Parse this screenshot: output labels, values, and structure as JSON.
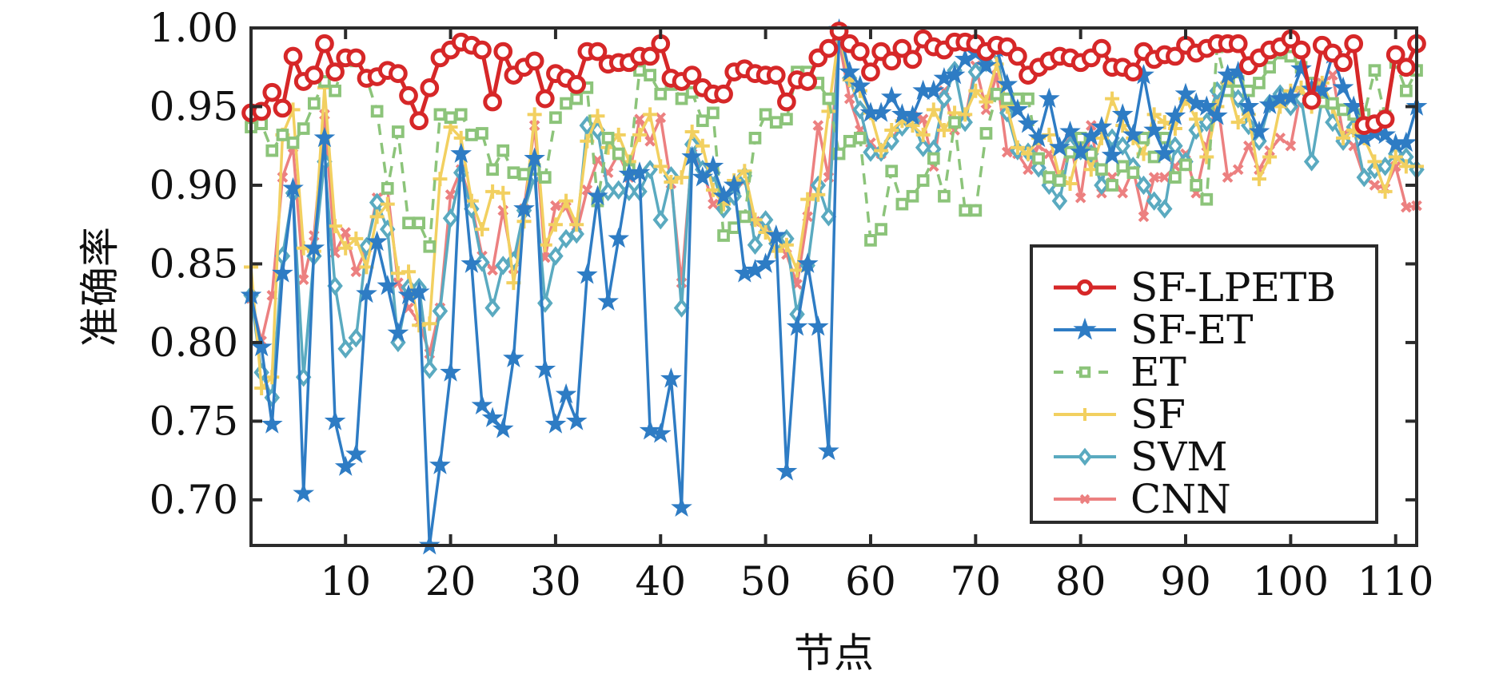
{
  "chart_data": {
    "type": "line",
    "title": "",
    "xlabel": "节点",
    "ylabel": "准确率",
    "xlim": [
      1,
      112
    ],
    "ylim": [
      0.671,
      1.0
    ],
    "xticks": [
      10,
      20,
      30,
      40,
      50,
      60,
      70,
      80,
      90,
      100,
      110
    ],
    "yticks": [
      0.7,
      0.75,
      0.8,
      0.85,
      0.9,
      0.95,
      1.0
    ],
    "ytick_labels": [
      "0.70",
      "0.75",
      "0.80",
      "0.85",
      "0.90",
      "0.95",
      "1.00"
    ],
    "xtick_labels": [
      "10",
      "20",
      "30",
      "40",
      "50",
      "60",
      "70",
      "80",
      "90",
      "100",
      "110"
    ],
    "grid": false,
    "legend_position": "lower-right",
    "series": [
      {
        "name": "SF-LPETB",
        "color": "#d62728",
        "marker": "circle",
        "dash": "solid",
        "values": [
          0.946,
          0.947,
          0.959,
          0.949,
          0.982,
          0.966,
          0.97,
          0.99,
          0.972,
          0.981,
          0.981,
          0.968,
          0.969,
          0.973,
          0.971,
          0.957,
          0.941,
          0.962,
          0.981,
          0.986,
          0.991,
          0.989,
          0.986,
          0.953,
          0.985,
          0.97,
          0.975,
          0.979,
          0.955,
          0.971,
          0.968,
          0.964,
          0.985,
          0.985,
          0.977,
          0.978,
          0.978,
          0.982,
          0.982,
          0.99,
          0.968,
          0.966,
          0.97,
          0.962,
          0.958,
          0.958,
          0.972,
          0.974,
          0.971,
          0.97,
          0.97,
          0.953,
          0.967,
          0.966,
          0.981,
          0.987,
          0.998,
          0.99,
          0.985,
          0.972,
          0.985,
          0.979,
          0.987,
          0.98,
          0.993,
          0.988,
          0.986,
          0.991,
          0.991,
          0.99,
          0.985,
          0.989,
          0.988,
          0.982,
          0.97,
          0.975,
          0.979,
          0.982,
          0.981,
          0.978,
          0.981,
          0.987,
          0.975,
          0.975,
          0.972,
          0.985,
          0.98,
          0.983,
          0.982,
          0.989,
          0.984,
          0.987,
          0.99,
          0.99,
          0.99,
          0.976,
          0.981,
          0.986,
          0.988,
          0.993,
          0.986,
          0.954,
          0.989,
          0.984,
          0.978,
          0.99,
          0.938,
          0.939,
          0.942,
          0.983,
          0.975,
          0.99
        ]
      },
      {
        "name": "SF-ET",
        "color": "#2e7cc4",
        "marker": "star",
        "dash": "solid",
        "values": [
          0.83,
          0.797,
          0.748,
          0.844,
          0.898,
          0.704,
          0.86,
          0.93,
          0.75,
          0.721,
          0.729,
          0.831,
          0.864,
          0.836,
          0.806,
          0.83,
          0.832,
          0.671,
          0.722,
          0.781,
          0.92,
          0.85,
          0.76,
          0.752,
          0.745,
          0.79,
          0.885,
          0.917,
          0.783,
          0.748,
          0.767,
          0.75,
          0.843,
          0.893,
          0.826,
          0.866,
          0.907,
          0.908,
          0.744,
          0.742,
          0.777,
          0.695,
          0.918,
          0.905,
          0.912,
          0.893,
          0.9,
          0.844,
          0.846,
          0.85,
          0.868,
          0.718,
          0.81,
          0.85,
          0.81,
          0.731,
          0.999,
          0.972,
          0.963,
          0.946,
          0.946,
          0.956,
          0.945,
          0.944,
          0.96,
          0.96,
          0.968,
          0.97,
          0.98,
          0.984,
          0.976,
          0.987,
          0.964,
          0.948,
          0.939,
          0.93,
          0.955,
          0.924,
          0.934,
          0.921,
          0.931,
          0.937,
          0.919,
          0.945,
          0.932,
          0.97,
          0.935,
          0.92,
          0.944,
          0.958,
          0.952,
          0.95,
          0.944,
          0.97,
          0.972,
          0.95,
          0.934,
          0.951,
          0.955,
          0.956,
          0.974,
          0.961,
          0.96,
          0.983,
          0.962,
          0.95,
          0.93,
          0.933,
          0.932,
          0.926,
          0.927,
          0.95
        ]
      },
      {
        "name": "ET",
        "color": "#8cc47a",
        "marker": "square",
        "dash": "dashed",
        "values": [
          0.937,
          0.939,
          0.922,
          0.932,
          0.927,
          0.936,
          0.952,
          0.966,
          0.96,
          0.981,
          0.979,
          0.968,
          0.947,
          0.898,
          0.934,
          0.876,
          0.876,
          0.861,
          0.945,
          0.943,
          0.945,
          0.932,
          0.933,
          0.91,
          0.922,
          0.908,
          0.907,
          0.91,
          0.905,
          0.943,
          0.952,
          0.955,
          0.962,
          0.89,
          0.93,
          0.92,
          0.91,
          0.973,
          0.97,
          0.958,
          0.964,
          0.955,
          0.959,
          0.941,
          0.946,
          0.868,
          0.873,
          0.88,
          0.93,
          0.945,
          0.94,
          0.942,
          0.972,
          0.972,
          0.965,
          0.955,
          0.92,
          0.928,
          0.93,
          0.865,
          0.872,
          0.909,
          0.888,
          0.893,
          0.903,
          0.917,
          0.893,
          0.94,
          0.884,
          0.884,
          0.933,
          0.958,
          0.955,
          0.955,
          0.955,
          0.917,
          0.905,
          0.903,
          0.921,
          0.93,
          0.92,
          0.91,
          0.9,
          0.912,
          0.908,
          0.93,
          0.918,
          0.93,
          0.905,
          0.913,
          0.9,
          0.891,
          0.988,
          0.96,
          0.966,
          0.96,
          0.965,
          0.975,
          0.984,
          0.982,
          0.975,
          0.965,
          0.953,
          0.952,
          0.948,
          0.945,
          0.945,
          0.973,
          0.944,
          0.978,
          0.96,
          0.973
        ]
      },
      {
        "name": "SF",
        "color": "#f2d060",
        "marker": "plus",
        "dash": "solid",
        "values": [
          0.848,
          0.771,
          0.778,
          0.932,
          0.948,
          0.86,
          0.858,
          0.962,
          0.874,
          0.86,
          0.866,
          0.848,
          0.88,
          0.888,
          0.844,
          0.845,
          0.811,
          0.812,
          0.904,
          0.937,
          0.93,
          0.89,
          0.872,
          0.896,
          0.895,
          0.838,
          0.877,
          0.945,
          0.862,
          0.875,
          0.89,
          0.875,
          0.928,
          0.944,
          0.924,
          0.932,
          0.915,
          0.932,
          0.945,
          0.912,
          0.902,
          0.905,
          0.934,
          0.925,
          0.897,
          0.888,
          0.903,
          0.909,
          0.878,
          0.87,
          0.858,
          0.862,
          0.846,
          0.891,
          0.894,
          0.947,
          0.997,
          0.967,
          0.96,
          0.946,
          0.922,
          0.935,
          0.941,
          0.938,
          0.932,
          0.948,
          0.935,
          0.946,
          0.945,
          0.96,
          0.953,
          0.977,
          0.95,
          0.924,
          0.92,
          0.93,
          0.932,
          0.905,
          0.901,
          0.928,
          0.91,
          0.93,
          0.955,
          0.938,
          0.93,
          0.92,
          0.945,
          0.94,
          0.936,
          0.955,
          0.942,
          0.918,
          0.95,
          0.965,
          0.94,
          0.945,
          0.904,
          0.918,
          0.95,
          0.96,
          0.962,
          0.95,
          0.965,
          0.95,
          0.93,
          0.935,
          0.93,
          0.915,
          0.896,
          0.918,
          0.912,
          0.912
        ]
      },
      {
        "name": "SVM",
        "color": "#5aaac0",
        "marker": "diamond",
        "dash": "solid",
        "values": [
          0.83,
          0.781,
          0.765,
          0.855,
          0.895,
          0.778,
          0.855,
          0.915,
          0.836,
          0.796,
          0.803,
          0.861,
          0.889,
          0.872,
          0.8,
          0.835,
          0.835,
          0.783,
          0.82,
          0.879,
          0.908,
          0.885,
          0.851,
          0.822,
          0.849,
          0.852,
          0.884,
          0.906,
          0.825,
          0.855,
          0.866,
          0.869,
          0.938,
          0.935,
          0.896,
          0.897,
          0.896,
          0.896,
          0.91,
          0.878,
          0.906,
          0.822,
          0.926,
          0.91,
          0.908,
          0.885,
          0.893,
          0.906,
          0.862,
          0.878,
          0.863,
          0.866,
          0.818,
          0.849,
          0.9,
          0.88,
          0.995,
          0.968,
          0.948,
          0.921,
          0.921,
          0.928,
          0.937,
          0.941,
          0.924,
          0.923,
          0.955,
          0.973,
          0.94,
          0.972,
          0.978,
          0.985,
          0.946,
          0.922,
          0.921,
          0.911,
          0.9,
          0.89,
          0.925,
          0.922,
          0.92,
          0.9,
          0.93,
          0.925,
          0.912,
          0.9,
          0.89,
          0.885,
          0.925,
          0.915,
          0.935,
          0.94,
          0.96,
          0.965,
          0.955,
          0.938,
          0.928,
          0.952,
          0.958,
          0.95,
          0.955,
          0.915,
          0.955,
          0.94,
          0.928,
          0.937,
          0.905,
          0.91,
          0.912,
          0.92,
          0.918,
          0.91
        ]
      },
      {
        "name": "CNN",
        "color": "#ec8080",
        "marker": "x",
        "dash": "solid",
        "values": [
          0.828,
          0.801,
          0.83,
          0.905,
          0.924,
          0.84,
          0.868,
          0.945,
          0.857,
          0.87,
          0.845,
          0.86,
          0.892,
          0.897,
          0.838,
          0.822,
          0.813,
          0.793,
          0.822,
          0.894,
          0.91,
          0.888,
          0.855,
          0.846,
          0.884,
          0.847,
          0.885,
          0.938,
          0.854,
          0.887,
          0.886,
          0.87,
          0.897,
          0.916,
          0.908,
          0.92,
          0.905,
          0.942,
          0.928,
          0.943,
          0.901,
          0.838,
          0.92,
          0.91,
          0.888,
          0.892,
          0.896,
          0.903,
          0.877,
          0.875,
          0.865,
          0.856,
          0.837,
          0.88,
          0.938,
          0.905,
          0.992,
          0.955,
          0.935,
          0.927,
          0.92,
          0.928,
          0.941,
          0.944,
          0.942,
          0.912,
          0.96,
          0.935,
          0.942,
          0.976,
          0.948,
          0.97,
          0.921,
          0.92,
          0.91,
          0.925,
          0.92,
          0.904,
          0.93,
          0.892,
          0.938,
          0.895,
          0.905,
          0.895,
          0.91,
          0.88,
          0.905,
          0.905,
          0.912,
          0.92,
          0.895,
          0.925,
          0.955,
          0.905,
          0.91,
          0.925,
          0.91,
          0.922,
          0.93,
          0.925,
          0.96,
          0.955,
          0.965,
          0.97,
          0.932,
          0.925,
          0.905,
          0.9,
          0.898,
          0.912,
          0.886,
          0.887
        ]
      }
    ]
  }
}
